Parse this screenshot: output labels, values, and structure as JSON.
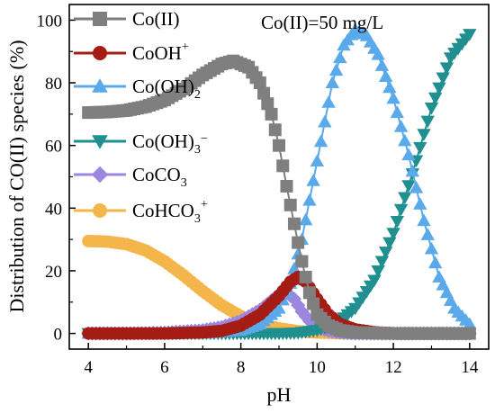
{
  "chart_data": {
    "type": "line",
    "title": "",
    "annotation": "Co(II)=50 mg/L",
    "xlabel": "pH",
    "ylabel": "Distribution of CO(II) species (%)",
    "xlim": [
      3.5,
      14.5
    ],
    "ylim": [
      -5,
      105
    ],
    "xticks": [
      4,
      6,
      8,
      10,
      12,
      14
    ],
    "yticks": [
      0,
      20,
      40,
      60,
      80,
      100
    ],
    "grid": false,
    "legend_position": "top-left",
    "series": [
      {
        "name": "Co(II)",
        "legend_main": "Co(II)",
        "legend_sub": "",
        "legend_sup": "",
        "legend_tail": "",
        "color": "#7f7f7f",
        "marker": "square",
        "x": [
          4,
          4.5,
          5,
          5.5,
          6,
          6.5,
          7,
          7.5,
          7.8,
          8.2,
          8.5,
          8.8,
          9.0,
          9.2,
          9.4,
          9.6,
          9.8,
          10.0,
          10.3,
          10.6,
          11,
          12,
          13,
          14
        ],
        "y": [
          70.5,
          70.7,
          71.2,
          72.4,
          74.5,
          78.0,
          82.5,
          86.0,
          87.0,
          85.0,
          80.0,
          70.0,
          60.0,
          47.0,
          35.0,
          23.0,
          13.0,
          6.0,
          2.5,
          1.0,
          0.3,
          0,
          0,
          0
        ]
      },
      {
        "name": "CoOH+",
        "legend_main": "CoOH",
        "legend_sub": "",
        "legend_sup": "+",
        "legend_tail": "",
        "color": "#a51c14",
        "marker": "circle",
        "x": [
          4,
          6,
          7,
          7.5,
          8,
          8.5,
          9.0,
          9.3,
          9.5,
          9.7,
          10.0,
          10.3,
          10.6,
          11.0,
          11.5,
          12,
          13,
          14
        ],
        "y": [
          0,
          0,
          0.3,
          0.8,
          2.5,
          6.0,
          12.0,
          16.5,
          18.0,
          16.5,
          11.0,
          6.0,
          3.0,
          1.3,
          0.4,
          0,
          0,
          0
        ]
      },
      {
        "name": "Co(OH)2",
        "legend_main": "Co(OH)",
        "legend_sub": "2",
        "legend_sup": "",
        "legend_tail": "",
        "color": "#5aa9ea",
        "marker": "triangle-up",
        "x": [
          4,
          7,
          8,
          8.5,
          9.0,
          9.3,
          9.6,
          10.0,
          10.4,
          10.7,
          11.0,
          11.3,
          11.6,
          12.0,
          12.4,
          12.8,
          13.2,
          13.6,
          14.0
        ],
        "y": [
          0,
          0,
          1.0,
          3.0,
          8.0,
          16.0,
          30.0,
          55.0,
          80.0,
          92.0,
          97.0,
          95.0,
          89.0,
          75.0,
          57.0,
          36.0,
          18.0,
          8.0,
          3.0
        ]
      },
      {
        "name": "Co(OH)3-",
        "legend_main": "Co(OH)",
        "legend_sub": "3",
        "legend_sup": "",
        "legend_tail": "−",
        "color": "#1f8f8f",
        "marker": "triangle-down",
        "x": [
          4,
          8,
          9,
          9.5,
          10.0,
          10.5,
          11.0,
          11.5,
          12.0,
          12.5,
          13.0,
          13.5,
          14.0
        ],
        "y": [
          0,
          0,
          0,
          0.2,
          1.0,
          3.0,
          8.0,
          17.0,
          32.0,
          51.0,
          72.0,
          88.0,
          95.5
        ]
      },
      {
        "name": "CoCO3",
        "legend_main": "CoCO",
        "legend_sub": "3",
        "legend_sup": "",
        "legend_tail": "",
        "color": "#9b87e0",
        "marker": "diamond",
        "x": [
          4,
          5,
          6,
          7,
          7.5,
          8.0,
          8.5,
          8.8,
          9.0,
          9.2,
          9.4,
          9.6,
          9.8,
          10.0,
          10.3,
          10.6,
          11.0,
          12,
          13,
          14
        ],
        "y": [
          0,
          0,
          0.2,
          1.0,
          2.0,
          4.0,
          7.5,
          10.5,
          12.5,
          13.0,
          11.0,
          7.0,
          4.0,
          2.0,
          0.8,
          0.3,
          0,
          0,
          0,
          0
        ]
      },
      {
        "name": "CoHCO3+",
        "legend_main": "CoHCO",
        "legend_sub": "3",
        "legend_sup": "+",
        "legend_tail": "",
        "color": "#f4b54a",
        "marker": "circle",
        "x": [
          4,
          4.5,
          5,
          5.5,
          6,
          6.5,
          7,
          7.5,
          8,
          8.5,
          9,
          9.5,
          10,
          10.5,
          11,
          12,
          13,
          14
        ],
        "y": [
          29.5,
          29.3,
          28.5,
          26.5,
          23.0,
          18.5,
          13.5,
          9.0,
          5.5,
          3.0,
          1.6,
          0.7,
          0.3,
          0.1,
          0,
          0,
          0,
          0
        ]
      }
    ]
  }
}
